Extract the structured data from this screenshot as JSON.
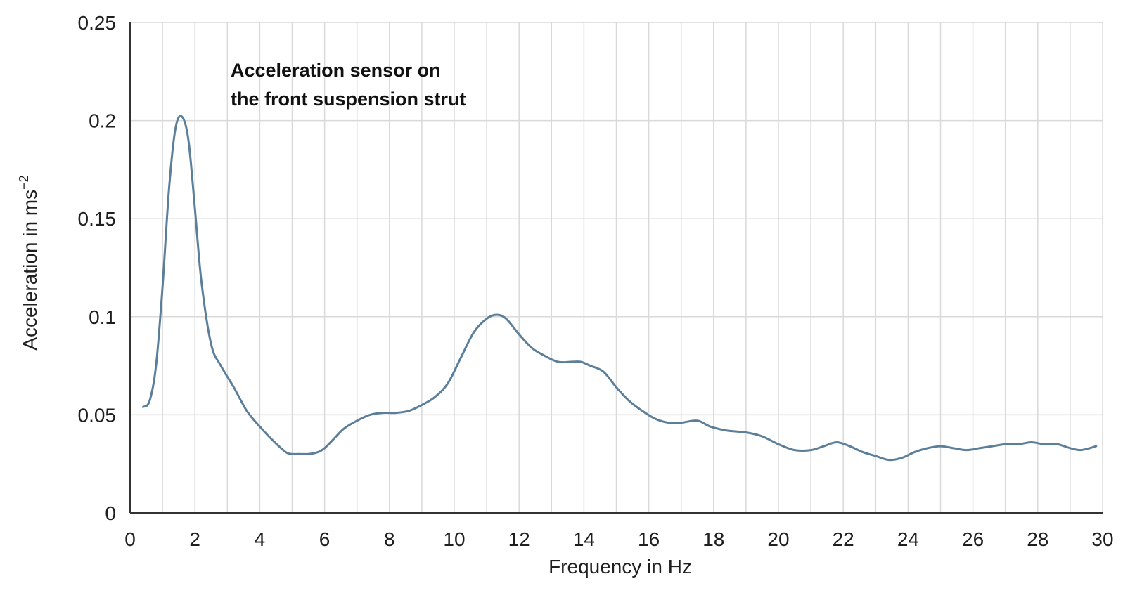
{
  "chart_data": {
    "type": "line",
    "title": "",
    "annotation": {
      "line1": "Acceleration sensor on",
      "line2": "the front suspension strut"
    },
    "xlabel": "Frequency in Hz",
    "ylabel_main": "Acceleration in ms",
    "ylabel_exponent": "−2",
    "xlim": [
      0,
      30
    ],
    "ylim": [
      0,
      0.25
    ],
    "x_ticks": [
      "0",
      "2",
      "4",
      "6",
      "8",
      "10",
      "12",
      "14",
      "16",
      "18",
      "20",
      "22",
      "24",
      "26",
      "28",
      "30"
    ],
    "y_ticks": [
      "0",
      "0.05",
      "0.1",
      "0.15",
      "0.2",
      "0.25"
    ],
    "x_gridlines_step": 1,
    "y_gridlines_step": 0.05,
    "grid": true,
    "legend": "none",
    "series_color": "#5b7f9a",
    "series": [
      {
        "x": [
          0.4,
          0.6,
          0.8,
          1.0,
          1.2,
          1.4,
          1.6,
          1.8,
          2.0,
          2.2,
          2.5,
          2.8,
          3.2,
          3.6,
          4.0,
          4.4,
          4.8,
          5.0,
          5.2,
          5.5,
          5.8,
          6.0,
          6.3,
          6.6,
          7.0,
          7.4,
          7.8,
          8.2,
          8.6,
          9.0,
          9.4,
          9.8,
          10.2,
          10.6,
          11.0,
          11.3,
          11.6,
          12.0,
          12.4,
          12.8,
          13.2,
          13.6,
          13.9,
          14.2,
          14.6,
          15.0,
          15.4,
          15.8,
          16.2,
          16.6,
          17.0,
          17.5,
          17.9,
          18.4,
          19.0,
          19.5,
          20.0,
          20.5,
          21.0,
          21.4,
          21.8,
          22.2,
          22.6,
          23.0,
          23.4,
          23.8,
          24.2,
          24.6,
          25.0,
          25.4,
          25.8,
          26.2,
          26.6,
          27.0,
          27.4,
          27.8,
          28.2,
          28.6,
          29.0,
          29.3,
          29.6,
          29.8
        ],
        "y": [
          0.054,
          0.057,
          0.075,
          0.115,
          0.165,
          0.196,
          0.202,
          0.19,
          0.155,
          0.118,
          0.086,
          0.075,
          0.064,
          0.052,
          0.044,
          0.037,
          0.031,
          0.03,
          0.03,
          0.03,
          0.031,
          0.033,
          0.038,
          0.043,
          0.047,
          0.05,
          0.051,
          0.051,
          0.052,
          0.055,
          0.059,
          0.066,
          0.079,
          0.092,
          0.099,
          0.101,
          0.099,
          0.091,
          0.084,
          0.08,
          0.077,
          0.077,
          0.077,
          0.075,
          0.072,
          0.064,
          0.057,
          0.052,
          0.048,
          0.046,
          0.046,
          0.047,
          0.044,
          0.042,
          0.041,
          0.039,
          0.035,
          0.032,
          0.032,
          0.034,
          0.036,
          0.034,
          0.031,
          0.029,
          0.027,
          0.028,
          0.031,
          0.033,
          0.034,
          0.033,
          0.032,
          0.033,
          0.034,
          0.035,
          0.035,
          0.036,
          0.035,
          0.035,
          0.033,
          0.032,
          0.033,
          0.034
        ]
      }
    ]
  }
}
